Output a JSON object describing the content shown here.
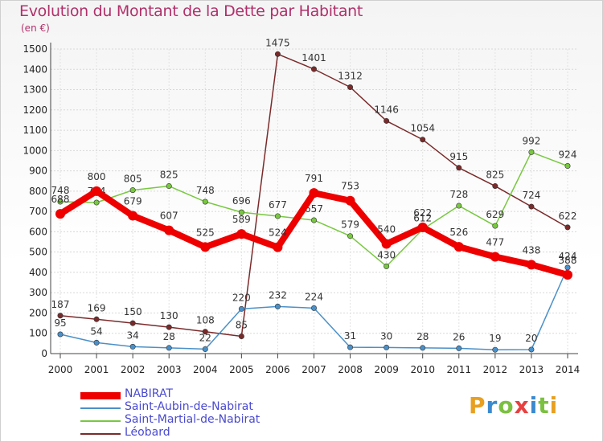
{
  "title": "Evolution du Montant de la Dette par Habitant",
  "subtitle": "(en €)",
  "logo": {
    "letters": [
      "P",
      "r",
      "o",
      "x",
      "i",
      "t",
      "i"
    ],
    "colors": [
      "#e8a020",
      "#3a8ad0",
      "#7bc040",
      "#e84040",
      "#3a8ad0",
      "#7bc040",
      "#e8a020"
    ]
  },
  "chart_data": {
    "type": "line",
    "title": "Evolution du Montant de la Dette par Habitant",
    "ylabel": "(en €)",
    "xlabel": "",
    "ylim": [
      0,
      1500
    ],
    "yticks": [
      0,
      100,
      200,
      300,
      400,
      500,
      600,
      700,
      800,
      900,
      1000,
      1100,
      1200,
      1300,
      1400,
      1500
    ],
    "x": [
      "2000",
      "2001",
      "2002",
      "2003",
      "2004",
      "2005",
      "2006",
      "2007",
      "2008",
      "2009",
      "2010",
      "2011",
      "2012",
      "2013",
      "2014"
    ],
    "grid": true,
    "legend_position": "bottom-left",
    "series": [
      {
        "name": "Léobard",
        "color": "#7a2a2a",
        "values": [
          187,
          169,
          150,
          130,
          108,
          85,
          1475,
          1401,
          1312,
          1146,
          1054,
          915,
          825,
          724,
          622
        ]
      },
      {
        "name": "Saint-Aubin-de-Nabirat",
        "color": "#4a90c8",
        "values": [
          95,
          54,
          34,
          28,
          22,
          220,
          232,
          224,
          31,
          30,
          28,
          26,
          19,
          20,
          424
        ]
      },
      {
        "name": "Saint-Martial-de-Nabirat",
        "color": "#78c840",
        "values": [
          748,
          744,
          805,
          825,
          748,
          696,
          677,
          657,
          579,
          430,
          612,
          728,
          629,
          992,
          924
        ]
      },
      {
        "name": "NABIRAT",
        "color": "#ee0000",
        "values": [
          688,
          800,
          679,
          607,
          525,
          589,
          524,
          791,
          753,
          540,
          622,
          526,
          477,
          438,
          388
        ]
      }
    ],
    "legend": [
      "NABIRAT",
      "Saint-Aubin-de-Nabirat",
      "Saint-Martial-de-Nabirat",
      "Léobard"
    ]
  }
}
